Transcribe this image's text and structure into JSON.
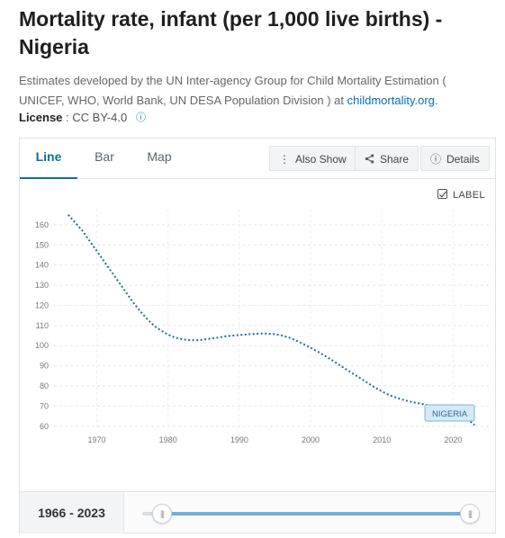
{
  "title": "Mortality rate, infant (per 1,000 live births) - Nigeria",
  "subtitle": {
    "text": "Estimates developed by the UN Inter-agency Group for Child Mortality Estimation ( UNICEF, WHO, World Bank, UN DESA Population Division ) at ",
    "link": "childmortality.org",
    "end": "."
  },
  "license": {
    "label": "License",
    "value": ": CC BY-4.0"
  },
  "tabs": [
    {
      "label": "Line",
      "active": true
    },
    {
      "label": "Bar",
      "active": false
    },
    {
      "label": "Map",
      "active": false
    }
  ],
  "toolbar": {
    "also_show": "Also Show",
    "share": "Share",
    "details": "Details"
  },
  "label_toggle": {
    "text": "LABEL",
    "checked": true
  },
  "footer": {
    "range_start": "1966",
    "range_sep": "-",
    "range_end": "2023"
  },
  "colors": {
    "accent": "#0a6fa8",
    "line": "#1f6e9e",
    "slider": "#6fb0db"
  },
  "chart_data": {
    "type": "line",
    "title": "",
    "xlabel": "",
    "ylabel": "",
    "xlim": [
      1964,
      2025
    ],
    "ylim": [
      59,
      168
    ],
    "x_ticks": [
      1970,
      1980,
      1990,
      2000,
      2010,
      2020
    ],
    "y_ticks": [
      60,
      70,
      80,
      90,
      100,
      110,
      120,
      130,
      140,
      150,
      160
    ],
    "grid": true,
    "series": [
      {
        "name": "NIGERIA",
        "x": [
          1966,
          1967,
          1968,
          1969,
          1970,
          1971,
          1972,
          1973,
          1974,
          1975,
          1976,
          1977,
          1978,
          1979,
          1980,
          1981,
          1982,
          1983,
          1984,
          1985,
          1986,
          1987,
          1988,
          1989,
          1990,
          1991,
          1992,
          1993,
          1994,
          1995,
          1996,
          1997,
          1998,
          1999,
          2000,
          2001,
          2002,
          2003,
          2004,
          2005,
          2006,
          2007,
          2008,
          2009,
          2010,
          2011,
          2012,
          2013,
          2014,
          2015,
          2016,
          2017,
          2018,
          2019,
          2020,
          2021,
          2022,
          2023
        ],
        "values": [
          165,
          161,
          157,
          152,
          147,
          142,
          137,
          132,
          127,
          122,
          117.5,
          113.5,
          110,
          107.5,
          105.5,
          104,
          103.2,
          102.8,
          102.7,
          103,
          103.5,
          104,
          104.6,
          105,
          105.3,
          105.6,
          105.8,
          106,
          106,
          105.7,
          105,
          104,
          102.5,
          100.8,
          99,
          97,
          95,
          92.8,
          90.5,
          88.2,
          86,
          83.8,
          81.5,
          79.3,
          77.3,
          75.5,
          74.2,
          73.1,
          72.2,
          71.5,
          70.8,
          70.1,
          69.4,
          68.7,
          67.9,
          66.2,
          63.7,
          60.5
        ]
      }
    ]
  }
}
